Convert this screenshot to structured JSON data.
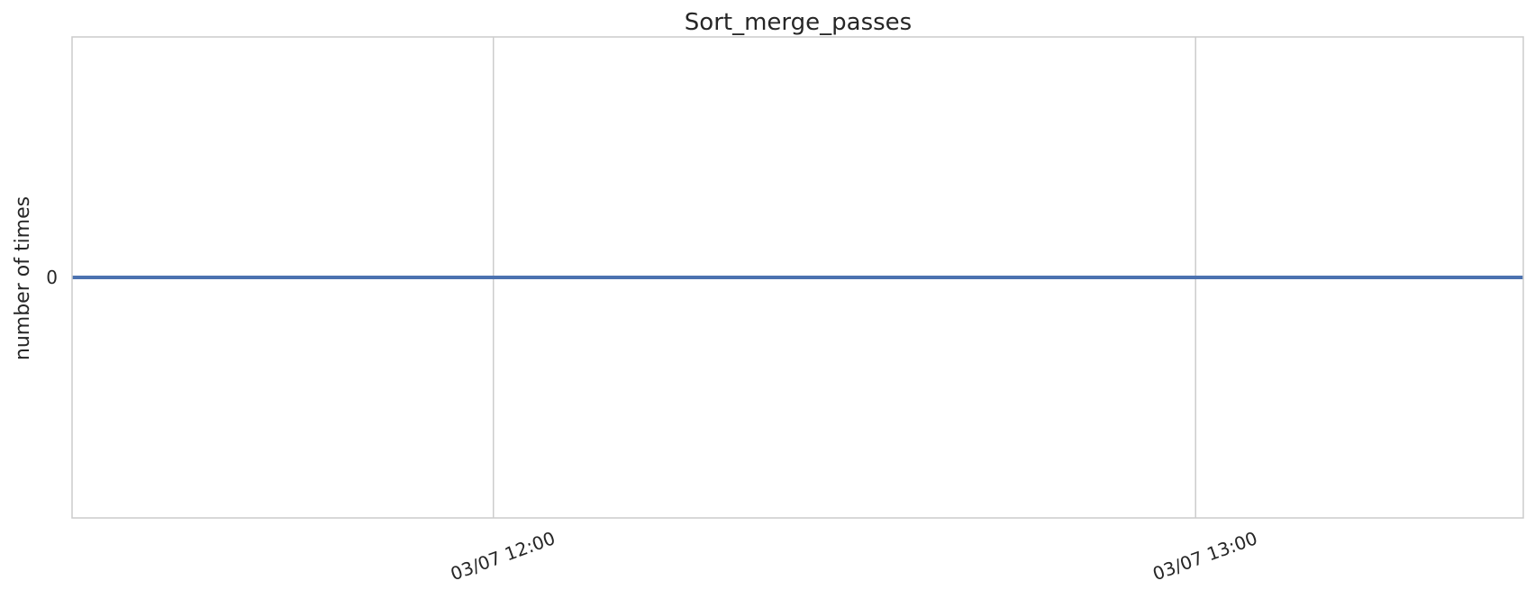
{
  "chart_data": {
    "type": "line",
    "title": "Sort_merge_passes",
    "xlabel": "",
    "ylabel": "number of times",
    "x_tick_labels": [
      "03/07 12:00",
      "03/07 13:00"
    ],
    "y_tick_labels": [
      "0"
    ],
    "xlim": [
      "03/07 11:24",
      "03/07 13:28"
    ],
    "ylim": [
      -0.055,
      0.055
    ],
    "grid": true,
    "series": [
      {
        "x": [
          "03/07 11:24",
          "03/07 13:28"
        ],
        "values": [
          0,
          0
        ],
        "color": "#4c72b0"
      }
    ]
  }
}
